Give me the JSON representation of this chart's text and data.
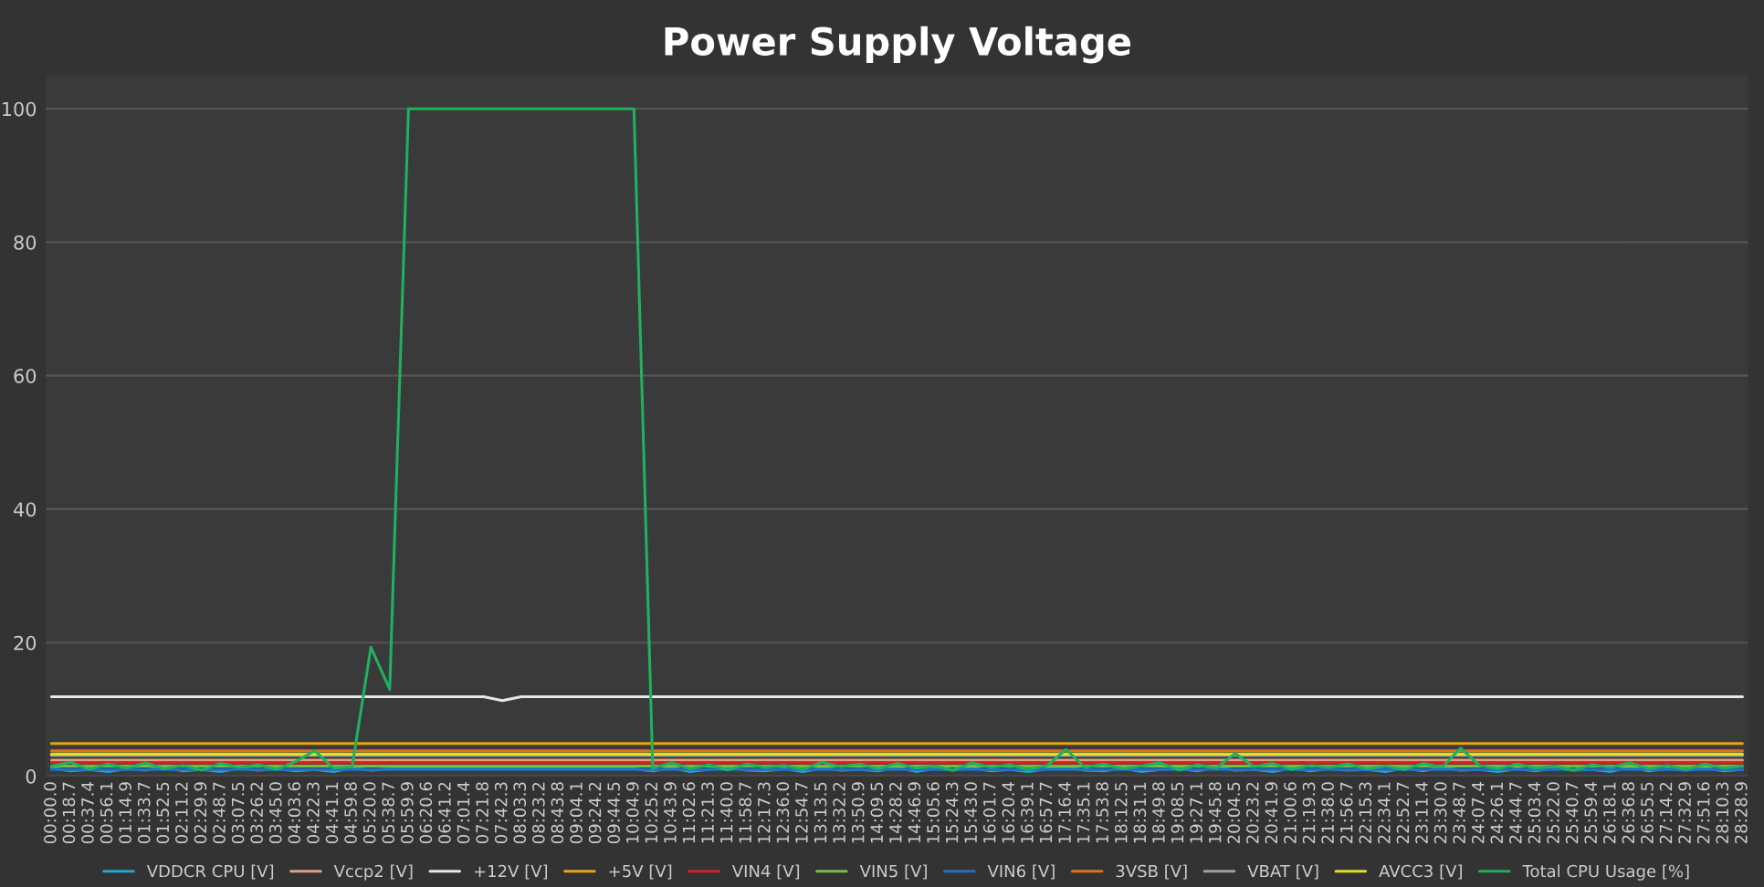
{
  "chart_data": {
    "type": "line",
    "title": "Power Supply Voltage",
    "categories": [
      "00:00.0",
      "00:18.7",
      "00:37.4",
      "00:56.1",
      "01:14.9",
      "01:33.7",
      "01:52.5",
      "02:11.2",
      "02:29.9",
      "02:48.7",
      "03:07.5",
      "03:26.2",
      "03:45.0",
      "04:03.6",
      "04:22.3",
      "04:41.1",
      "04:59.8",
      "05:20.0",
      "05:38.7",
      "05:59.9",
      "06:20.6",
      "06:41.2",
      "07:01.4",
      "07:21.8",
      "07:42.3",
      "08:03.3",
      "08:23.2",
      "08:43.8",
      "09:04.1",
      "09:24.2",
      "09:44.5",
      "10:04.9",
      "10:25.2",
      "10:43.9",
      "11:02.6",
      "11:21.3",
      "11:40.0",
      "11:58.7",
      "12:17.3",
      "12:36.0",
      "12:54.7",
      "13:13.5",
      "13:32.2",
      "13:50.9",
      "14:09.5",
      "14:28.2",
      "14:46.9",
      "15:05.6",
      "15:24.3",
      "15:43.0",
      "16:01.7",
      "16:20.4",
      "16:39.1",
      "16:57.7",
      "17:16.4",
      "17:35.1",
      "17:53.8",
      "18:12.5",
      "18:31.1",
      "18:49.8",
      "19:08.5",
      "19:27.1",
      "19:45.8",
      "20:04.5",
      "20:23.2",
      "20:41.9",
      "21:00.6",
      "21:19.3",
      "21:38.0",
      "21:56.7",
      "22:15.3",
      "22:34.1",
      "22:52.7",
      "23:11.4",
      "23:30.0",
      "23:48.7",
      "24:07.4",
      "24:26.1",
      "24:44.7",
      "25:03.4",
      "25:22.0",
      "25:40.7",
      "25:59.4",
      "26:18.1",
      "26:36.8",
      "26:55.5",
      "27:14.2",
      "27:32.9",
      "27:51.6",
      "28:10.3",
      "28:28.9"
    ],
    "ylim": [
      0,
      105
    ],
    "yticks": [
      0,
      20,
      40,
      60,
      80,
      100
    ],
    "grid": "y",
    "legend": "bottom",
    "series": [
      {
        "name": "VDDCR CPU [V]",
        "color": "#1fa6d6",
        "values": [
          1.2,
          0.8,
          1.0,
          0.7,
          1.1,
          0.9,
          1.3,
          0.8,
          1.0,
          0.7,
          1.2,
          0.9,
          1.1,
          0.8,
          1.0,
          0.7,
          1.2,
          0.9,
          1.1,
          1.1,
          1.1,
          1.1,
          1.1,
          1.1,
          1.1,
          1.1,
          1.1,
          1.1,
          1.1,
          1.1,
          1.1,
          1.1,
          0.8,
          1.2,
          0.7,
          1.0,
          1.3,
          0.9,
          0.8,
          1.1,
          0.7,
          1.2,
          0.9,
          1.0,
          0.8,
          1.3,
          0.7,
          1.1,
          0.9,
          1.2,
          0.8,
          1.0,
          0.7,
          1.1,
          1.3,
          0.9,
          0.8,
          1.2,
          0.7,
          1.0,
          1.1,
          0.8,
          1.3,
          0.9,
          1.0,
          0.7,
          1.2,
          0.8,
          1.1,
          0.9,
          1.0,
          0.7,
          1.2,
          0.8,
          1.3,
          0.9,
          1.0,
          0.7,
          1.1,
          0.8,
          1.2,
          0.9,
          1.0,
          0.7,
          1.3,
          0.8,
          1.1,
          0.9,
          1.2,
          0.8,
          1.0
        ]
      },
      {
        "name": "Vccp2 [V]",
        "color": "#e0a080",
        "values": [
          2.4,
          2.4,
          2.4,
          2.4,
          2.4,
          2.4,
          2.4,
          2.4,
          2.4,
          2.4,
          2.4,
          2.4,
          2.4,
          2.4,
          2.4,
          2.4,
          2.4,
          2.4,
          2.4,
          2.4,
          2.4,
          2.4,
          2.4,
          2.4,
          2.4,
          2.4,
          2.4,
          2.4,
          2.4,
          2.4,
          2.4,
          2.4,
          2.4,
          2.4,
          2.4,
          2.4,
          2.4,
          2.4,
          2.4,
          2.4,
          2.4,
          2.4,
          2.4,
          2.4,
          2.4,
          2.4,
          2.4,
          2.4,
          2.4,
          2.4,
          2.4,
          2.4,
          2.4,
          2.4,
          2.4,
          2.4,
          2.4,
          2.4,
          2.4,
          2.4,
          2.4,
          2.4,
          2.4,
          2.4,
          2.4,
          2.4,
          2.4,
          2.4,
          2.4,
          2.4,
          2.4,
          2.4,
          2.4,
          2.4,
          2.4,
          2.4,
          2.4,
          2.4,
          2.4,
          2.4,
          2.4,
          2.4,
          2.4,
          2.4,
          2.4,
          2.4,
          2.4,
          2.4,
          2.4,
          2.4,
          2.4
        ]
      },
      {
        "name": "+12V [V]",
        "color": "#e8e8e8",
        "values": [
          11.9,
          11.9,
          11.9,
          11.9,
          11.9,
          11.9,
          11.9,
          11.9,
          11.9,
          11.9,
          11.9,
          11.9,
          11.9,
          11.9,
          11.9,
          11.9,
          11.9,
          11.9,
          11.9,
          11.9,
          11.9,
          11.9,
          11.9,
          11.9,
          11.3,
          11.9,
          11.9,
          11.9,
          11.9,
          11.9,
          11.9,
          11.9,
          11.9,
          11.9,
          11.9,
          11.9,
          11.9,
          11.9,
          11.9,
          11.9,
          11.9,
          11.9,
          11.9,
          11.9,
          11.9,
          11.9,
          11.9,
          11.9,
          11.9,
          11.9,
          11.9,
          11.9,
          11.9,
          11.9,
          11.9,
          11.9,
          11.9,
          11.9,
          11.9,
          11.9,
          11.9,
          11.9,
          11.9,
          11.9,
          11.9,
          11.9,
          11.9,
          11.9,
          11.9,
          11.9,
          11.9,
          11.9,
          11.9,
          11.9,
          11.9,
          11.9,
          11.9,
          11.9,
          11.9,
          11.9,
          11.9,
          11.9,
          11.9,
          11.9,
          11.9,
          11.9,
          11.9,
          11.9,
          11.9,
          11.9,
          11.9
        ]
      },
      {
        "name": "+5V [V]",
        "color": "#e8a317",
        "values": [
          4.9,
          4.9,
          4.9,
          4.9,
          4.9,
          4.9,
          4.9,
          4.9,
          4.9,
          4.9,
          4.9,
          4.9,
          4.9,
          4.9,
          4.9,
          4.9,
          4.9,
          4.9,
          4.9,
          4.9,
          4.9,
          4.9,
          4.9,
          4.9,
          4.9,
          4.9,
          4.9,
          4.9,
          4.9,
          4.9,
          4.9,
          4.9,
          4.9,
          4.9,
          4.9,
          4.9,
          4.9,
          4.9,
          4.9,
          4.9,
          4.9,
          4.9,
          4.9,
          4.9,
          4.9,
          4.9,
          4.9,
          4.9,
          4.9,
          4.9,
          4.9,
          4.9,
          4.9,
          4.9,
          4.9,
          4.9,
          4.9,
          4.9,
          4.9,
          4.9,
          4.9,
          4.9,
          4.9,
          4.9,
          4.9,
          4.9,
          4.9,
          4.9,
          4.9,
          4.9,
          4.9,
          4.9,
          4.9,
          4.9,
          4.9,
          4.9,
          4.9,
          4.9,
          4.9,
          4.9,
          4.9,
          4.9,
          4.9,
          4.9,
          4.9,
          4.9,
          4.9,
          4.9,
          4.9,
          4.9,
          4.9
        ]
      },
      {
        "name": "VIN4 [V]",
        "color": "#d62020",
        "values": [
          2.0,
          2.0,
          2.0,
          2.0,
          2.0,
          2.0,
          2.0,
          2.0,
          2.0,
          2.0,
          2.0,
          2.0,
          2.0,
          2.0,
          2.0,
          2.0,
          2.0,
          2.0,
          2.0,
          2.0,
          2.0,
          2.0,
          2.0,
          2.0,
          2.0,
          2.0,
          2.0,
          2.0,
          2.0,
          2.0,
          2.0,
          2.0,
          2.0,
          2.0,
          2.0,
          2.0,
          2.0,
          2.0,
          2.0,
          2.0,
          2.0,
          2.0,
          2.0,
          2.0,
          2.0,
          2.0,
          2.0,
          2.0,
          2.0,
          2.0,
          2.0,
          2.0,
          2.0,
          2.0,
          2.0,
          2.0,
          2.0,
          2.0,
          2.0,
          2.0,
          2.0,
          2.0,
          2.0,
          2.0,
          2.0,
          2.0,
          2.0,
          2.0,
          2.0,
          2.0,
          2.0,
          2.0,
          2.0,
          2.0,
          2.0,
          2.0,
          2.0,
          2.0,
          2.0,
          2.0,
          2.0,
          2.0,
          2.0,
          2.0,
          2.0,
          2.0,
          2.0,
          2.0,
          2.0,
          2.0,
          2.0
        ]
      },
      {
        "name": "VIN5 [V]",
        "color": "#70c040",
        "values": [
          1.5,
          1.5,
          1.5,
          1.5,
          1.5,
          1.5,
          1.5,
          1.5,
          1.5,
          1.5,
          1.5,
          1.5,
          1.5,
          1.5,
          1.5,
          1.5,
          1.5,
          1.5,
          1.5,
          1.5,
          1.5,
          1.5,
          1.5,
          1.5,
          1.5,
          1.5,
          1.5,
          1.5,
          1.5,
          1.5,
          1.5,
          1.5,
          1.5,
          1.5,
          1.5,
          1.5,
          1.5,
          1.5,
          1.5,
          1.5,
          1.5,
          1.5,
          1.5,
          1.5,
          1.5,
          1.5,
          1.5,
          1.5,
          1.5,
          1.5,
          1.5,
          1.5,
          1.5,
          1.5,
          1.5,
          1.5,
          1.5,
          1.5,
          1.5,
          1.5,
          1.5,
          1.5,
          1.5,
          1.5,
          1.5,
          1.5,
          1.5,
          1.5,
          1.5,
          1.5,
          1.5,
          1.5,
          1.5,
          1.5,
          1.5,
          1.5,
          1.5,
          1.5,
          1.5,
          1.5,
          1.5,
          1.5,
          1.5,
          1.5,
          1.5,
          1.5,
          1.5,
          1.5,
          1.5,
          1.5,
          1.5
        ]
      },
      {
        "name": "VIN6 [V]",
        "color": "#2070c0",
        "values": [
          1.0,
          1.0,
          1.0,
          1.0,
          1.0,
          1.0,
          1.0,
          1.0,
          1.0,
          1.0,
          1.0,
          1.0,
          1.0,
          1.0,
          1.0,
          1.0,
          1.0,
          1.0,
          1.0,
          1.0,
          1.0,
          1.0,
          1.0,
          1.0,
          1.0,
          1.0,
          1.0,
          1.0,
          1.0,
          1.0,
          1.0,
          1.0,
          1.0,
          1.0,
          1.0,
          1.0,
          1.0,
          1.0,
          1.0,
          1.0,
          1.0,
          1.0,
          1.0,
          1.0,
          1.0,
          1.0,
          1.0,
          1.0,
          1.0,
          1.0,
          1.0,
          1.0,
          1.0,
          1.0,
          1.0,
          1.0,
          1.0,
          1.0,
          1.0,
          1.0,
          1.0,
          1.0,
          1.0,
          1.0,
          1.0,
          1.0,
          1.0,
          1.0,
          1.0,
          1.0,
          1.0,
          1.0,
          1.0,
          1.0,
          1.0,
          1.0,
          1.0,
          1.0,
          1.0,
          1.0,
          1.0,
          1.0,
          1.0,
          1.0,
          1.0,
          1.0,
          1.0,
          1.0,
          1.0,
          1.0,
          1.0
        ]
      },
      {
        "name": "3VSB [V]",
        "color": "#e07020",
        "values": [
          3.8,
          3.8,
          3.8,
          3.8,
          3.8,
          3.8,
          3.8,
          3.8,
          3.8,
          3.8,
          3.8,
          3.8,
          3.8,
          3.8,
          3.8,
          3.8,
          3.8,
          3.8,
          3.8,
          3.8,
          3.8,
          3.8,
          3.8,
          3.8,
          3.8,
          3.8,
          3.8,
          3.8,
          3.8,
          3.8,
          3.8,
          3.8,
          3.8,
          3.8,
          3.8,
          3.8,
          3.8,
          3.8,
          3.8,
          3.8,
          3.8,
          3.8,
          3.8,
          3.8,
          3.8,
          3.8,
          3.8,
          3.8,
          3.8,
          3.8,
          3.8,
          3.8,
          3.8,
          3.8,
          3.8,
          3.8,
          3.8,
          3.8,
          3.8,
          3.8,
          3.8,
          3.8,
          3.8,
          3.8,
          3.8,
          3.8,
          3.8,
          3.8,
          3.8,
          3.8,
          3.8,
          3.8,
          3.8,
          3.8,
          3.8,
          3.8,
          3.8,
          3.8,
          3.8,
          3.8,
          3.8,
          3.8,
          3.8,
          3.8,
          3.8,
          3.8,
          3.8,
          3.8,
          3.8,
          3.8,
          3.8
        ]
      },
      {
        "name": "VBAT [V]",
        "color": "#a0a0a0",
        "values": [
          3.1,
          3.1,
          3.1,
          3.1,
          3.1,
          3.1,
          3.1,
          3.1,
          3.1,
          3.1,
          3.1,
          3.1,
          3.1,
          3.1,
          3.1,
          3.1,
          3.1,
          3.1,
          3.1,
          3.1,
          3.1,
          3.1,
          3.1,
          3.1,
          3.1,
          3.1,
          3.1,
          3.1,
          3.1,
          3.1,
          3.1,
          3.1,
          3.1,
          3.1,
          3.1,
          3.1,
          3.1,
          3.1,
          3.1,
          3.1,
          3.1,
          3.1,
          3.1,
          3.1,
          3.1,
          3.1,
          3.1,
          3.1,
          3.1,
          3.1,
          3.1,
          3.1,
          3.1,
          3.1,
          3.1,
          3.1,
          3.1,
          3.1,
          3.1,
          3.1,
          3.1,
          3.1,
          3.1,
          3.1,
          3.1,
          3.1,
          3.1,
          3.1,
          3.1,
          3.1,
          3.1,
          3.1,
          3.1,
          3.1,
          3.1,
          3.1,
          3.1,
          3.1,
          3.1,
          3.1,
          3.1,
          3.1,
          3.1,
          3.1,
          3.1,
          3.1,
          3.1,
          3.1,
          3.1,
          3.1,
          3.1
        ]
      },
      {
        "name": "AVCC3 [V]",
        "color": "#e0e020",
        "values": [
          3.3,
          3.3,
          3.3,
          3.3,
          3.3,
          3.3,
          3.3,
          3.3,
          3.3,
          3.3,
          3.3,
          3.3,
          3.3,
          3.3,
          3.3,
          3.3,
          3.3,
          3.3,
          3.3,
          3.3,
          3.3,
          3.3,
          3.3,
          3.3,
          3.3,
          3.3,
          3.3,
          3.3,
          3.3,
          3.3,
          3.3,
          3.3,
          3.3,
          3.3,
          3.3,
          3.3,
          3.3,
          3.3,
          3.3,
          3.3,
          3.3,
          3.3,
          3.3,
          3.3,
          3.3,
          3.3,
          3.3,
          3.3,
          3.3,
          3.3,
          3.3,
          3.3,
          3.3,
          3.3,
          3.3,
          3.3,
          3.3,
          3.3,
          3.3,
          3.3,
          3.3,
          3.3,
          3.3,
          3.3,
          3.3,
          3.3,
          3.3,
          3.3,
          3.3,
          3.3,
          3.3,
          3.3,
          3.3,
          3.3,
          3.3,
          3.3,
          3.3,
          3.3,
          3.3,
          3.3,
          3.3,
          3.3,
          3.3,
          3.3,
          3.3,
          3.3,
          3.3,
          3.3,
          3.3,
          3.3,
          3.3
        ]
      },
      {
        "name": "Total CPU Usage [%]",
        "color": "#20b060",
        "values": [
          1.5,
          2.1,
          1.0,
          1.8,
          1.2,
          2.0,
          1.1,
          1.6,
          0.9,
          1.9,
          1.3,
          1.7,
          1.0,
          2.2,
          3.8,
          1.2,
          1.4,
          19.3,
          13.0,
          100,
          100,
          100,
          100,
          100,
          100,
          100,
          100,
          100,
          100,
          100,
          100,
          100,
          1.2,
          2.0,
          1.1,
          1.7,
          0.9,
          1.8,
          1.3,
          1.6,
          1.0,
          2.1,
          1.4,
          1.8,
          1.1,
          1.9,
          1.2,
          1.5,
          0.9,
          2.0,
          1.3,
          1.7,
          1.0,
          1.6,
          4.0,
          1.3,
          1.8,
          1.1,
          1.5,
          2.0,
          0.9,
          1.7,
          1.2,
          3.4,
          1.4,
          1.9,
          1.0,
          1.6,
          1.3,
          1.8,
          1.1,
          1.5,
          1.0,
          1.9,
          1.3,
          4.2,
          1.6,
          1.1,
          1.8,
          1.2,
          1.5,
          0.9,
          1.7,
          1.3,
          2.0,
          1.1,
          1.6,
          1.0,
          1.8,
          1.2,
          1.5
        ]
      }
    ]
  }
}
